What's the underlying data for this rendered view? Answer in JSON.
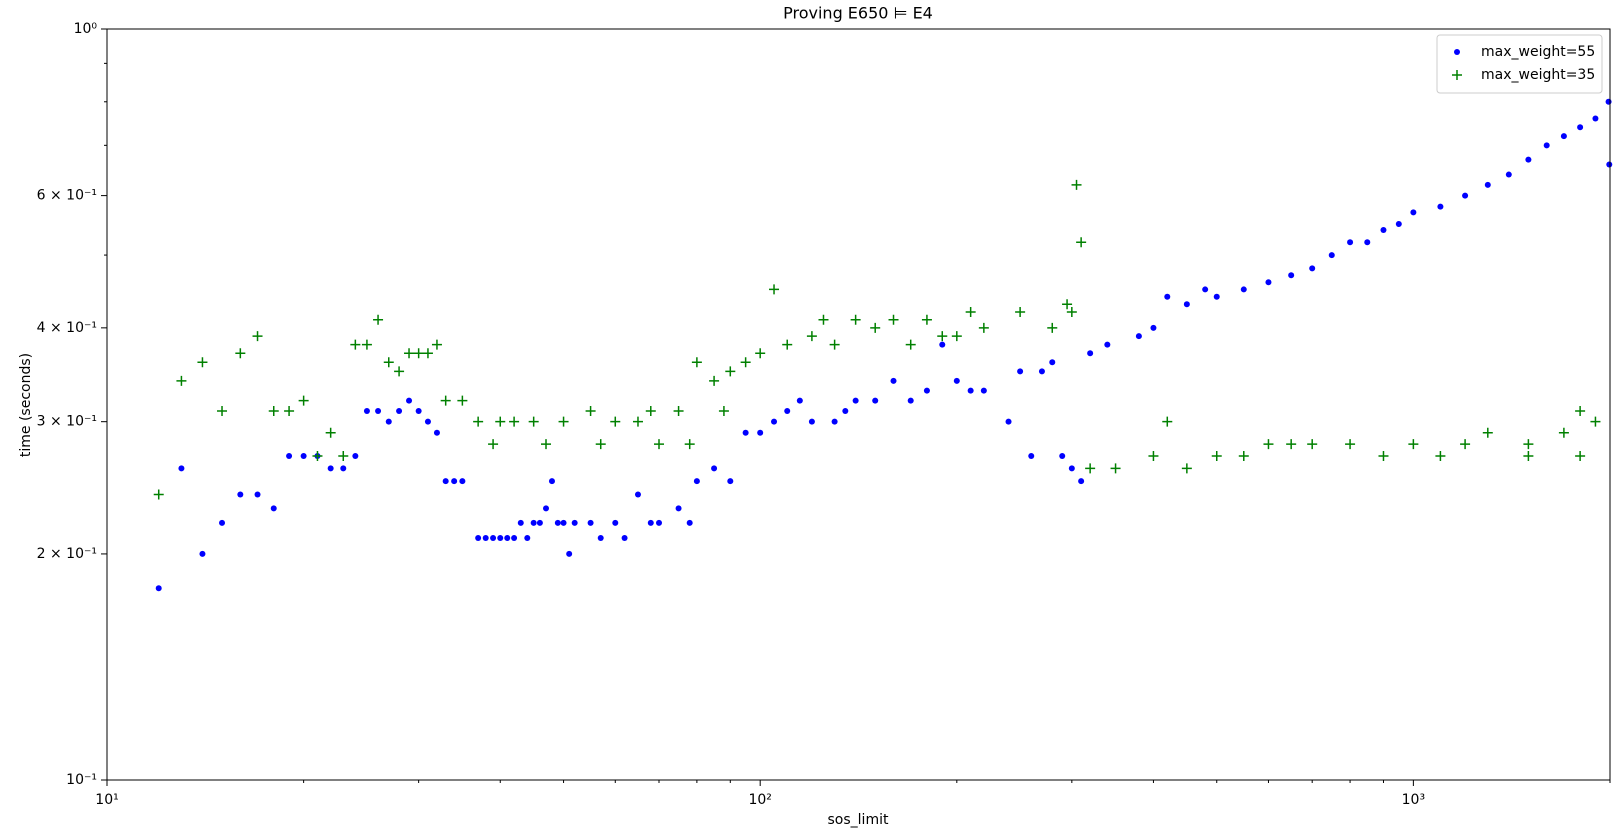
{
  "chart_data": {
    "type": "scatter",
    "title": "Proving E650 ⊨ E4",
    "xlabel": "sos_limit",
    "ylabel": "time (seconds)",
    "xscale": "log",
    "yscale": "log",
    "xlim": [
      10,
      2000
    ],
    "ylim": [
      0.1,
      1
    ],
    "xticks": [
      {
        "value": 10,
        "label": "10¹"
      },
      {
        "value": 100,
        "label": "10²"
      },
      {
        "value": 1000,
        "label": "10³"
      }
    ],
    "xminorticks": [
      20,
      30,
      40,
      50,
      60,
      70,
      80,
      90,
      200,
      300,
      400,
      500,
      600,
      700,
      800,
      900,
      2000
    ],
    "yticks": [
      {
        "value": 0.1,
        "label": "10⁻¹"
      },
      {
        "value": 0.2,
        "label": "2 × 10⁻¹"
      },
      {
        "value": 0.3,
        "label": "3 × 10⁻¹"
      },
      {
        "value": 0.4,
        "label": "4 × 10⁻¹"
      },
      {
        "value": 0.6,
        "label": "6 × 10⁻¹"
      },
      {
        "value": 1,
        "label": "10⁰"
      }
    ],
    "yminorticks": [
      0.5,
      0.7,
      0.8,
      0.9
    ],
    "legend": "upper right",
    "series": [
      {
        "name": "max_weight=55",
        "color": "#0000ff",
        "marker": "circle",
        "x": [
          12,
          13,
          14,
          15,
          16,
          17,
          18,
          19,
          20,
          21,
          22,
          23,
          24,
          25,
          26,
          27,
          28,
          29,
          30,
          31,
          32,
          33,
          34,
          35,
          37,
          38,
          39,
          40,
          41,
          42,
          43,
          44,
          45,
          46,
          47,
          48,
          49,
          50,
          51,
          52,
          55,
          57,
          60,
          62,
          65,
          68,
          70,
          75,
          78,
          80,
          85,
          90,
          95,
          100,
          105,
          110,
          115,
          120,
          130,
          135,
          140,
          150,
          160,
          170,
          180,
          190,
          200,
          210,
          220,
          240,
          250,
          260,
          270,
          280,
          290,
          300,
          310,
          320,
          340,
          380,
          400,
          420,
          450,
          480,
          500,
          550,
          600,
          650,
          700,
          750,
          800,
          850,
          900,
          950,
          1000,
          1100,
          1200,
          1300,
          1400,
          1500,
          1600,
          1700,
          1800,
          1900,
          1990,
          1995
        ],
        "values": [
          0.18,
          0.26,
          0.2,
          0.22,
          0.24,
          0.24,
          0.23,
          0.27,
          0.27,
          0.27,
          0.26,
          0.26,
          0.27,
          0.31,
          0.31,
          0.3,
          0.31,
          0.32,
          0.31,
          0.3,
          0.29,
          0.25,
          0.25,
          0.25,
          0.21,
          0.21,
          0.21,
          0.21,
          0.21,
          0.21,
          0.22,
          0.21,
          0.22,
          0.22,
          0.23,
          0.25,
          0.22,
          0.22,
          0.2,
          0.22,
          0.22,
          0.21,
          0.22,
          0.21,
          0.24,
          0.22,
          0.22,
          0.23,
          0.22,
          0.25,
          0.26,
          0.25,
          0.29,
          0.29,
          0.3,
          0.31,
          0.32,
          0.3,
          0.3,
          0.31,
          0.32,
          0.32,
          0.34,
          0.32,
          0.33,
          0.38,
          0.34,
          0.33,
          0.33,
          0.3,
          0.35,
          0.27,
          0.35,
          0.36,
          0.27,
          0.26,
          0.25,
          0.37,
          0.38,
          0.39,
          0.4,
          0.44,
          0.43,
          0.45,
          0.44,
          0.45,
          0.46,
          0.47,
          0.48,
          0.5,
          0.52,
          0.52,
          0.54,
          0.55,
          0.57,
          0.58,
          0.6,
          0.62,
          0.64,
          0.67,
          0.7,
          0.72,
          0.74,
          0.76,
          0.8,
          0.66
        ]
      },
      {
        "name": "max_weight=35",
        "color": "#008000",
        "marker": "plus",
        "x": [
          12,
          13,
          14,
          15,
          16,
          17,
          18,
          19,
          20,
          21,
          22,
          23,
          24,
          25,
          26,
          27,
          28,
          29,
          30,
          31,
          32,
          33,
          35,
          37,
          39,
          40,
          42,
          45,
          47,
          50,
          55,
          57,
          60,
          65,
          68,
          70,
          75,
          78,
          80,
          85,
          88,
          90,
          95,
          100,
          105,
          110,
          120,
          125,
          130,
          140,
          150,
          160,
          170,
          180,
          190,
          200,
          210,
          220,
          250,
          280,
          295,
          300,
          305,
          310,
          320,
          350,
          400,
          420,
          450,
          500,
          550,
          600,
          650,
          700,
          800,
          900,
          1000,
          1100,
          1200,
          1300,
          1500,
          1500,
          1700,
          1800,
          1800,
          1900
        ],
        "values": [
          0.24,
          0.34,
          0.36,
          0.31,
          0.37,
          0.39,
          0.31,
          0.31,
          0.32,
          0.27,
          0.29,
          0.27,
          0.38,
          0.38,
          0.41,
          0.36,
          0.35,
          0.37,
          0.37,
          0.37,
          0.38,
          0.32,
          0.32,
          0.3,
          0.28,
          0.3,
          0.3,
          0.3,
          0.28,
          0.3,
          0.31,
          0.28,
          0.3,
          0.3,
          0.31,
          0.28,
          0.31,
          0.28,
          0.36,
          0.34,
          0.31,
          0.35,
          0.36,
          0.37,
          0.45,
          0.38,
          0.39,
          0.41,
          0.38,
          0.41,
          0.4,
          0.41,
          0.38,
          0.41,
          0.39,
          0.39,
          0.42,
          0.4,
          0.42,
          0.4,
          0.43,
          0.42,
          0.62,
          0.52,
          0.26,
          0.26,
          0.27,
          0.3,
          0.26,
          0.27,
          0.27,
          0.28,
          0.28,
          0.28,
          0.28,
          0.27,
          0.28,
          0.27,
          0.28,
          0.29,
          0.28,
          0.27,
          0.29,
          0.31,
          0.27,
          0.3
        ]
      }
    ]
  }
}
